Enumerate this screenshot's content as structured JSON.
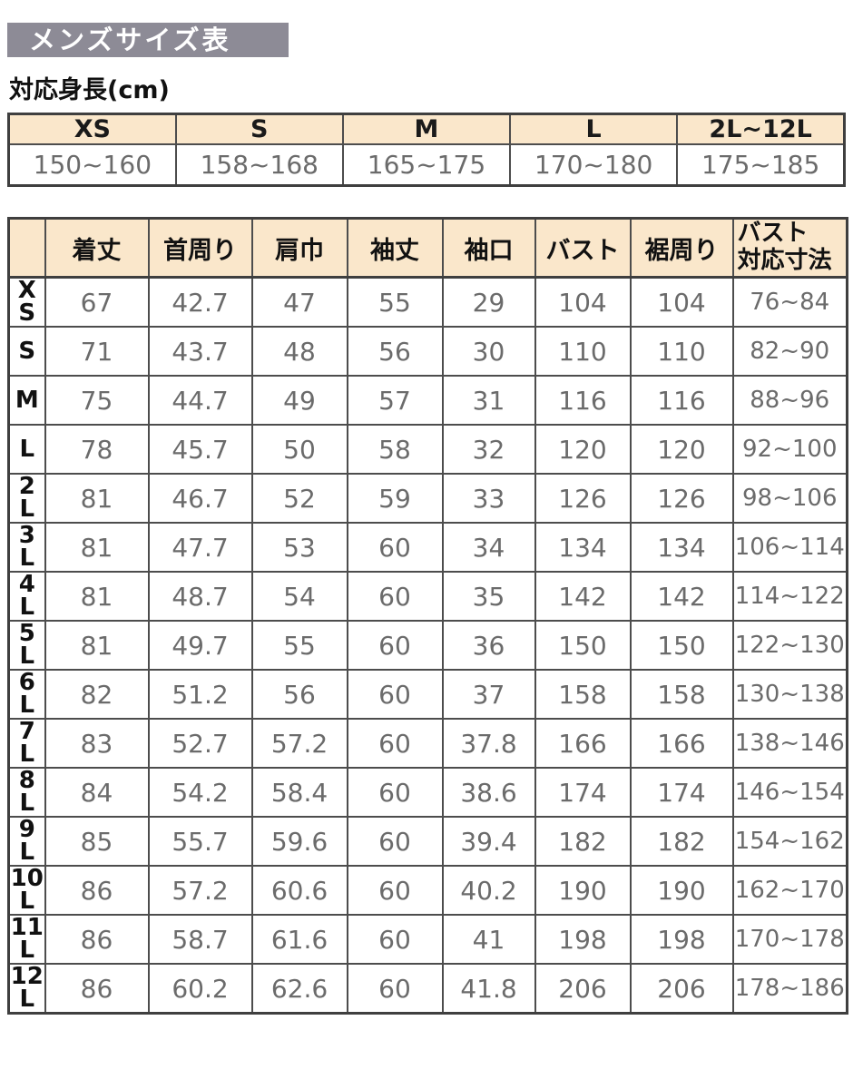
{
  "page": {
    "title": "メンズサイズ表",
    "height_label": "対応身長(cm)"
  },
  "colors": {
    "title_bg": "#8d8b96",
    "header_bg": "#fae7cb",
    "border": "#4d4d4d",
    "value_text": "#6b6b6b"
  },
  "height_table": {
    "columns": [
      "XS",
      "S",
      "M",
      "L",
      "2L~12L"
    ],
    "ranges": [
      "150~160",
      "158~168",
      "165~175",
      "170~180",
      "175~185"
    ]
  },
  "size_table": {
    "corner": "",
    "columns": [
      "着丈",
      "首周り",
      "肩巾",
      "袖丈",
      "袖口",
      "バスト",
      "裾周り",
      "バスト\n対応寸法"
    ],
    "rows": [
      {
        "size": "XS",
        "label_lines": [
          "X",
          "S"
        ],
        "values": [
          "67",
          "42.7",
          "47",
          "55",
          "29",
          "104",
          "104",
          "76~84"
        ]
      },
      {
        "size": "S",
        "label_lines": [
          "S"
        ],
        "values": [
          "71",
          "43.7",
          "48",
          "56",
          "30",
          "110",
          "110",
          "82~90"
        ]
      },
      {
        "size": "M",
        "label_lines": [
          "M"
        ],
        "values": [
          "75",
          "44.7",
          "49",
          "57",
          "31",
          "116",
          "116",
          "88~96"
        ]
      },
      {
        "size": "L",
        "label_lines": [
          "L"
        ],
        "values": [
          "78",
          "45.7",
          "50",
          "58",
          "32",
          "120",
          "120",
          "92~100"
        ]
      },
      {
        "size": "2L",
        "label_lines": [
          "2",
          "L"
        ],
        "values": [
          "81",
          "46.7",
          "52",
          "59",
          "33",
          "126",
          "126",
          "98~106"
        ]
      },
      {
        "size": "3L",
        "label_lines": [
          "3",
          "L"
        ],
        "values": [
          "81",
          "47.7",
          "53",
          "60",
          "34",
          "134",
          "134",
          "106~114"
        ]
      },
      {
        "size": "4L",
        "label_lines": [
          "4",
          "L"
        ],
        "values": [
          "81",
          "48.7",
          "54",
          "60",
          "35",
          "142",
          "142",
          "114~122"
        ]
      },
      {
        "size": "5L",
        "label_lines": [
          "5",
          "L"
        ],
        "values": [
          "81",
          "49.7",
          "55",
          "60",
          "36",
          "150",
          "150",
          "122~130"
        ]
      },
      {
        "size": "6L",
        "label_lines": [
          "6",
          "L"
        ],
        "values": [
          "82",
          "51.2",
          "56",
          "60",
          "37",
          "158",
          "158",
          "130~138"
        ]
      },
      {
        "size": "7L",
        "label_lines": [
          "7",
          "L"
        ],
        "values": [
          "83",
          "52.7",
          "57.2",
          "60",
          "37.8",
          "166",
          "166",
          "138~146"
        ]
      },
      {
        "size": "8L",
        "label_lines": [
          "8",
          "L"
        ],
        "values": [
          "84",
          "54.2",
          "58.4",
          "60",
          "38.6",
          "174",
          "174",
          "146~154"
        ]
      },
      {
        "size": "9L",
        "label_lines": [
          "9",
          "L"
        ],
        "values": [
          "85",
          "55.7",
          "59.6",
          "60",
          "39.4",
          "182",
          "182",
          "154~162"
        ]
      },
      {
        "size": "10L",
        "label_lines": [
          "10",
          "L"
        ],
        "values": [
          "86",
          "57.2",
          "60.6",
          "60",
          "40.2",
          "190",
          "190",
          "162~170"
        ]
      },
      {
        "size": "11L",
        "label_lines": [
          "11",
          "L"
        ],
        "values": [
          "86",
          "58.7",
          "61.6",
          "60",
          "41",
          "198",
          "198",
          "170~178"
        ]
      },
      {
        "size": "12L",
        "label_lines": [
          "12",
          "L"
        ],
        "values": [
          "86",
          "60.2",
          "62.6",
          "60",
          "41.8",
          "206",
          "206",
          "178~186"
        ]
      }
    ]
  }
}
